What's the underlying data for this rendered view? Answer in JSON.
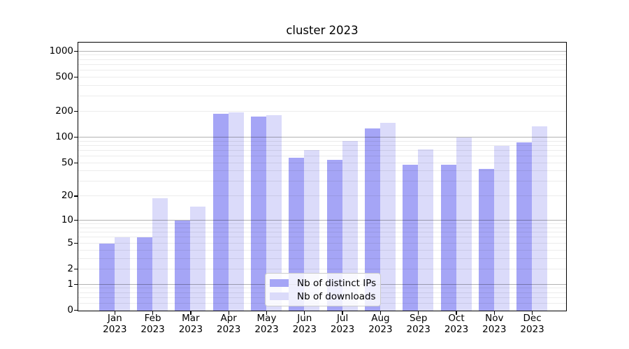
{
  "title": "cluster 2023",
  "chart_data": {
    "type": "bar",
    "title": "cluster 2023",
    "categories": [
      "Jan 2023",
      "Feb 2023",
      "Mar 2023",
      "Apr 2023",
      "May 2023",
      "Jun 2023",
      "Jul 2023",
      "Aug 2023",
      "Sep 2023",
      "Oct 2023",
      "Nov 2023",
      "Dec 2023"
    ],
    "series": [
      {
        "name": "Nb of distinct IPs",
        "color": "#a5a5f6",
        "values": [
          5,
          6,
          10,
          190,
          177,
          58,
          55,
          128,
          48,
          48,
          43,
          87
        ]
      },
      {
        "name": "Nb of downloads",
        "color": "#dbdbfa",
        "values": [
          6,
          19,
          15,
          195,
          181,
          71,
          91,
          148,
          73,
          100,
          80,
          135
        ]
      }
    ],
    "yscale": "log1p",
    "y_tick_labels": [
      "0",
      "1",
      "2",
      "5",
      "10",
      "20",
      "50",
      "100",
      "200",
      "500",
      "1000"
    ],
    "y_tick_values": [
      0,
      1,
      2,
      5,
      10,
      20,
      50,
      100,
      200,
      500,
      1000
    ],
    "ylim": [
      0,
      1240
    ],
    "grid": true,
    "legend_position": "lower center",
    "xlabel": "",
    "ylabel": ""
  },
  "colors": {
    "bar_dark": "#a5a5f6",
    "bar_light": "#dbdbfa",
    "grid_major": "#b2b2b2",
    "grid_minor": "#ececec",
    "spine": "#000000",
    "legend_border": "#cccccc"
  }
}
